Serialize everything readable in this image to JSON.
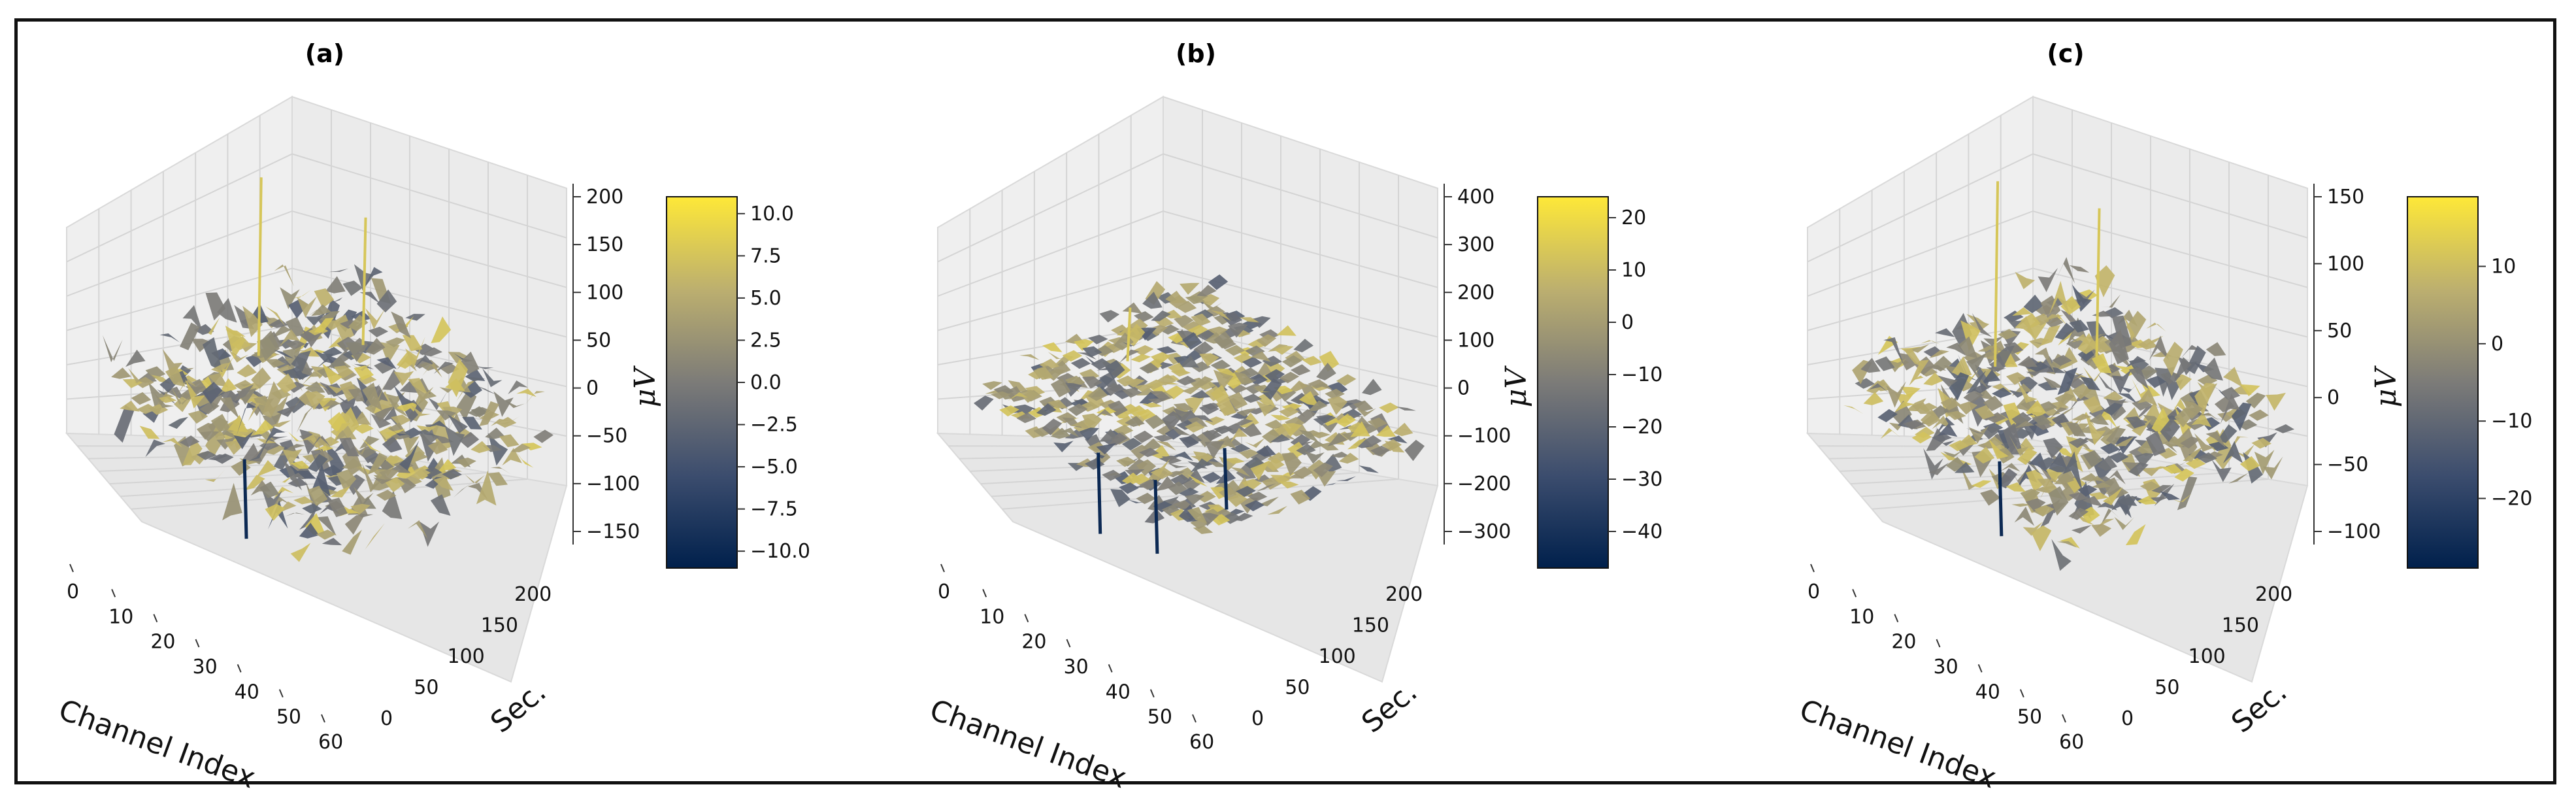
{
  "figure": {
    "border_color": "#111111"
  },
  "colormap": {
    "name": "cividis",
    "stops": [
      "#00204c",
      "#3c4d6e",
      "#7c7b78",
      "#bcaf6f",
      "#fee838"
    ]
  },
  "chart_data": [
    {
      "type": "surface3d",
      "title": "(a)",
      "xlabel": "Channel Index",
      "ylabel": "Sec.",
      "zlabel": "μV",
      "xticks": [
        "0",
        "10",
        "20",
        "30",
        "40",
        "50",
        "60"
      ],
      "yticks": [
        "0",
        "50",
        "100",
        "150",
        "200"
      ],
      "zticks": [
        "200",
        "150",
        "100",
        "50",
        "0",
        "−50",
        "−100",
        "−150"
      ],
      "zlim": [
        -180,
        220
      ],
      "colorbar_ticks": [
        "10.0",
        "7.5",
        "5.0",
        "2.5",
        "0.0",
        "−2.5",
        "−5.0",
        "−7.5",
        "−10.0"
      ],
      "colorbar_range": [
        -11,
        11
      ],
      "surface": {
        "base": 0,
        "amplitude": 45,
        "spikes_up": [
          210,
          150
        ],
        "spikes_down": [
          -170
        ]
      }
    },
    {
      "type": "surface3d",
      "title": "(b)",
      "xlabel": "Channel Index",
      "ylabel": "Sec.",
      "zlabel": "μV",
      "xticks": [
        "0",
        "10",
        "20",
        "30",
        "40",
        "50",
        "60"
      ],
      "yticks": [
        "0",
        "50",
        "100",
        "150",
        "200"
      ],
      "zticks": [
        "400",
        "300",
        "200",
        "100",
        "0",
        "−100",
        "−200",
        "−300"
      ],
      "zlim": [
        -340,
        420
      ],
      "colorbar_ticks": [
        "20",
        "10",
        "0",
        "−10",
        "−20",
        "−30",
        "−40"
      ],
      "colorbar_range": [
        -47,
        24
      ],
      "surface": {
        "base": 0,
        "amplitude": 40,
        "spikes_up": [
          120
        ],
        "spikes_down": [
          -330,
          -300,
          -250
        ]
      }
    },
    {
      "type": "surface3d",
      "title": "(c)",
      "xlabel": "Channel Index",
      "ylabel": "Sec.",
      "zlabel": "μV",
      "xticks": [
        "0",
        "10",
        "20",
        "30",
        "40",
        "50",
        "60"
      ],
      "yticks": [
        "0",
        "50",
        "100",
        "150",
        "200"
      ],
      "zticks": [
        "150",
        "100",
        "50",
        "0",
        "−50",
        "−100"
      ],
      "zlim": [
        -115,
        160
      ],
      "colorbar_ticks": [
        "10",
        "0",
        "−10",
        "−20"
      ],
      "colorbar_range": [
        -29,
        19
      ],
      "surface": {
        "base": 0,
        "amplitude": 30,
        "spikes_up": [
          150,
          120
        ],
        "spikes_down": [
          -110
        ]
      }
    }
  ]
}
